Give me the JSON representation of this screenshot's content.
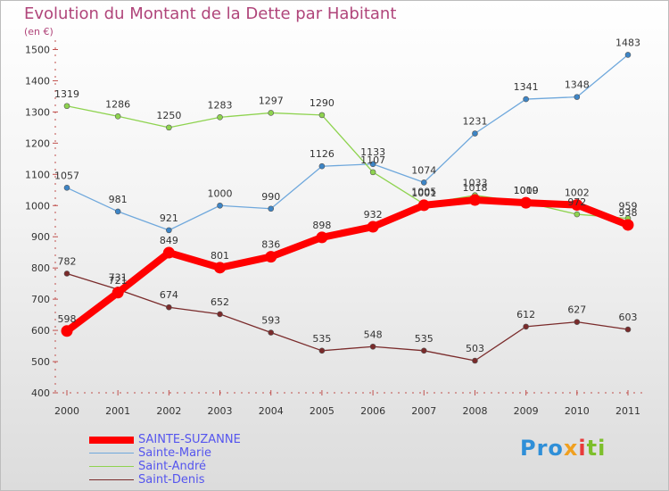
{
  "title": "Evolution du Montant de la Dette par Habitant",
  "subtitle": "(en €)",
  "logo": {
    "text": [
      "Pro",
      "x",
      "i",
      "ti"
    ]
  },
  "legend": [
    {
      "label": "SAINTE-SUZANNE",
      "color": "#ff0000",
      "weight": "bold"
    },
    {
      "label": "Sainte-Marie",
      "color": "#6fa8dc",
      "weight": "thin"
    },
    {
      "label": "Saint-André",
      "color": "#8ed34f",
      "weight": "thin"
    },
    {
      "label": "Saint-Denis",
      "color": "#7a2b2b",
      "weight": "thin"
    }
  ],
  "chart_data": {
    "type": "line",
    "x": [
      "2000",
      "2001",
      "2002",
      "2003",
      "2004",
      "2005",
      "2006",
      "2007",
      "2008",
      "2009",
      "2010",
      "2011"
    ],
    "yticks": [
      400,
      500,
      600,
      700,
      800,
      900,
      1000,
      1100,
      1200,
      1300,
      1400,
      1500
    ],
    "ylim": [
      400,
      1530
    ],
    "grid": false,
    "legend_position": "bottom-left",
    "series": [
      {
        "name": "SAINTE-SUZANNE",
        "color": "#ff0000",
        "marker": "#ff0000",
        "values": [
          598,
          721,
          849,
          801,
          836,
          898,
          932,
          1001,
          1018,
          1009,
          1002,
          938
        ],
        "labels": [
          "598",
          "721",
          "849",
          "801",
          "836",
          "898",
          "932",
          "1001",
          "1018",
          "1009",
          "1002",
          "938"
        ]
      },
      {
        "name": "Sainte-Marie",
        "color": "#6fa8dc",
        "marker": "#3d85c6",
        "values": [
          1057,
          981,
          921,
          1000,
          990,
          1126,
          1133,
          1074,
          1231,
          1341,
          1348,
          1483
        ],
        "labels": [
          "1057",
          "981",
          "921",
          "1000",
          "990",
          "1126",
          "1133",
          "1074",
          "1231",
          "1341",
          "1348",
          "1483"
        ]
      },
      {
        "name": "Saint-André",
        "color": "#8ed34f",
        "marker": "#8ed34f",
        "values": [
          1319,
          1286,
          1250,
          1283,
          1297,
          1290,
          1107,
          1005,
          1033,
          1010,
          972,
          959
        ],
        "labels": [
          "1319",
          "1286",
          "1250",
          "1283",
          "1297",
          "1290",
          "1107",
          "1005",
          "1033",
          "1010",
          "972",
          "959"
        ]
      },
      {
        "name": "Saint-Denis",
        "color": "#7a2b2b",
        "marker": "#7a2b2b",
        "values": [
          782,
          731,
          674,
          652,
          593,
          535,
          548,
          535,
          503,
          612,
          627,
          603
        ],
        "labels": [
          "782",
          "731",
          "674",
          "652",
          "593",
          "535",
          "548",
          "535",
          "503",
          "612",
          "627",
          "603"
        ]
      }
    ]
  }
}
